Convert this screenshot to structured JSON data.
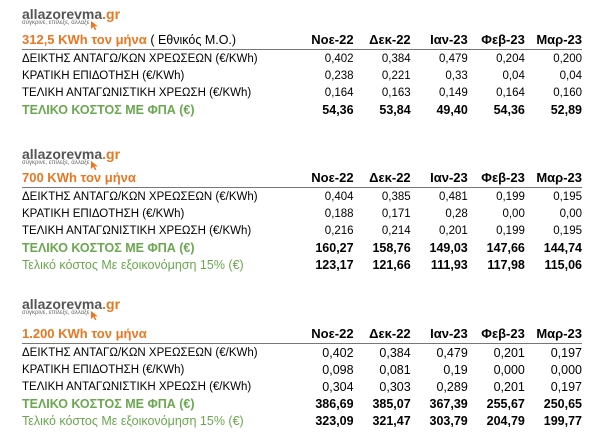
{
  "logo": {
    "brand_main": "allazorevma",
    "brand_tld": ".gr",
    "tagline": "σύγκρινε, επίλεξε, άλλαξε"
  },
  "months": [
    "Νοε-22",
    "Δεκ-22",
    "Ιαν-23",
    "Φεβ-23",
    "Μαρ-23"
  ],
  "tables": [
    {
      "title": "312,5 KWh τον μήνα",
      "title_note": "( Εθνικός Μ.Ο.)",
      "rows": [
        {
          "label": "ΔΕΙΚΤΗΣ ΑΝΤΑΓΩ/ΚΩΝ ΧΡΕΩΣΕΩΝ  (€/KWh)",
          "values": [
            "0,402",
            "0,384",
            "0,479",
            "0,204",
            "0,200"
          ]
        },
        {
          "label": "ΚΡΑΤΙΚΗ ΕΠΙΔΟΤΗΣΗ   (€/KWh)",
          "values": [
            "0,238",
            "0,221",
            "0,33",
            "0,04",
            "0,04"
          ]
        },
        {
          "label": "ΤΕΛΙΚΗ ΑΝΤΑΓΩΝΙΣΤΙΚΗ ΧΡΕΩΣΗ  (€/KWh)",
          "values": [
            "0,164",
            "0,163",
            "0,149",
            "0,164",
            "0,160"
          ]
        }
      ],
      "total": {
        "label": "ΤΕΛΙΚΟ ΚΟΣΤΟΣ ΜΕ ΦΠΑ  (€)",
        "values": [
          "54,36",
          "53,84",
          "49,40",
          "54,36",
          "52,89"
        ]
      }
    },
    {
      "title": "700 KWh τον μήνα",
      "title_note": "",
      "rows": [
        {
          "label": "ΔΕΙΚΤΗΣ ΑΝΤΑΓΩ/ΚΩΝ ΧΡΕΩΣΕΩΝ (€/KWh)",
          "values": [
            "0,404",
            "0,385",
            "0,481",
            "0,199",
            "0,195"
          ]
        },
        {
          "label": "ΚΡΑΤΙΚΗ ΕΠΙΔΟΤΗΣΗ   (€/KWh)",
          "values": [
            "0,188",
            "0,171",
            "0,28",
            "0,00",
            "0,00"
          ]
        },
        {
          "label": "ΤΕΛΙΚΗ ΑΝΤΑΓΩΝΙΣΤΙΚΗ ΧΡΕΩΣΗ  (€/KWh)",
          "values": [
            "0,216",
            "0,214",
            "0,201",
            "0,199",
            "0,195"
          ]
        }
      ],
      "total": {
        "label": "ΤΕΛΙΚΟ ΚΟΣΤΟΣ ΜΕ ΦΠΑ  (€)",
        "values": [
          "160,27",
          "158,76",
          "149,03",
          "147,66",
          "144,74"
        ]
      },
      "savings": {
        "label": "Τελικό κόστος Με εξοικονόμηση 15%  (€)",
        "values": [
          "123,17",
          "121,66",
          "111,93",
          "117,98",
          "115,06"
        ]
      }
    },
    {
      "title": "1.200 KWh τον μήνα",
      "title_note": "",
      "rows": [
        {
          "label": "ΔΕΙΚΤΗΣ ΑΝΤΑΓΩ/ΚΩΝ ΧΡΕΩΣΕΩΝ  (€/KWh)",
          "values": [
            "0,402",
            "0,384",
            "0,479",
            "0,201",
            "0,197"
          ]
        },
        {
          "label": "ΚΡΑΤΙΚΗ ΕΠΙΔΟΤΗΣΗ   (€/KWh)",
          "values": [
            "0,098",
            "0,081",
            "0,19",
            "0,000",
            "0,000"
          ]
        },
        {
          "label": "ΤΕΛΙΚΗ ΑΝΤΑΓΩΝΙΣΤΙΚΗ ΧΡΕΩΣΗ  (€/KWh)",
          "values": [
            "0,304",
            "0,303",
            "0,289",
            "0,201",
            "0,197"
          ]
        }
      ],
      "total": {
        "label": "ΤΕΛΙΚΟ ΚΟΣΤΟΣ ΜΕ ΦΠΑ  (€)",
        "values": [
          "386,69",
          "385,07",
          "367,39",
          "255,67",
          "250,65"
        ]
      },
      "savings": {
        "label": "Τελικό κόστος Με εξοικονόμηση 15% (€)",
        "values": [
          "323,09",
          "321,47",
          "303,79",
          "204,79",
          "199,77"
        ]
      }
    }
  ]
}
